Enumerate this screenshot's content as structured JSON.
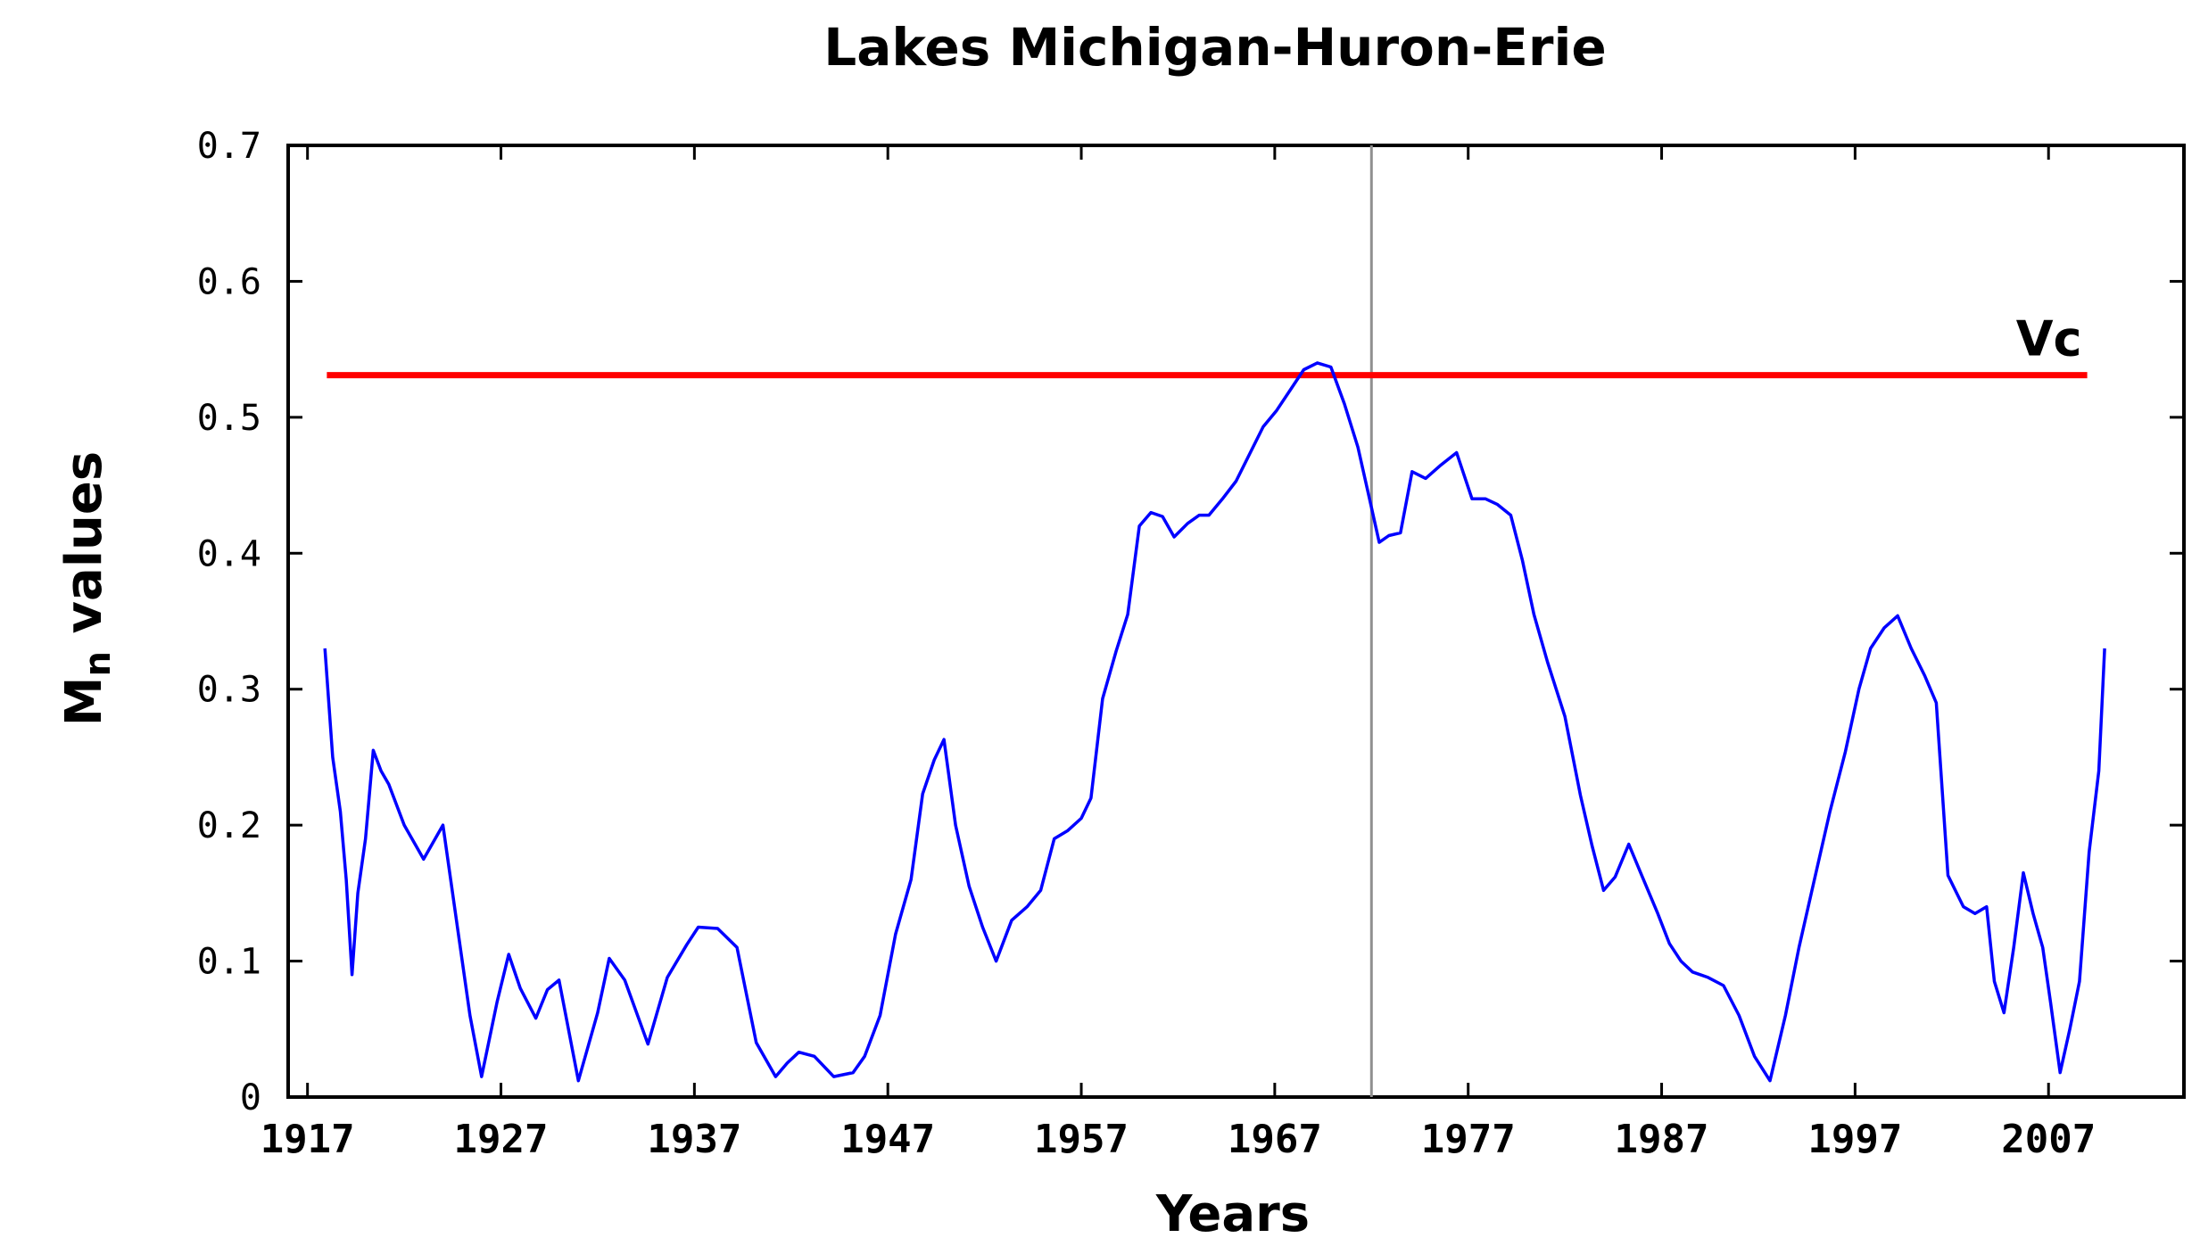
{
  "chart_data": {
    "type": "line",
    "title": "Lakes Michigan-Huron-Erie",
    "xlabel": "Years",
    "ylabel_main": "M",
    "ylabel_sub": "n",
    "ylabel_rest": " values",
    "xlim": [
      1916,
      2014
    ],
    "ylim": [
      0,
      0.7
    ],
    "x_ticks": [
      1917,
      1927,
      1937,
      1947,
      1957,
      1967,
      1977,
      1987,
      1997,
      2007
    ],
    "y_ticks": [
      0,
      0.1,
      0.2,
      0.3,
      0.4,
      0.5,
      0.6,
      0.7
    ],
    "y_tick_labels": [
      "0",
      "0.1",
      "0.2",
      "0.3",
      "0.4",
      "0.5",
      "0.6",
      "0.7"
    ],
    "grid": false,
    "reference_line": {
      "label": "Vc",
      "y": 0.531,
      "x_start": 1918,
      "x_end": 2009,
      "color": "#ff0000"
    },
    "vertical_marker": {
      "x": 1972,
      "color": "#909090"
    },
    "series": [
      {
        "color": "#0000ff",
        "x": [
          1917.9,
          1918.3,
          1918.7,
          1919.0,
          1919.3,
          1919.6,
          1920.0,
          1920.4,
          1920.8,
          1921.2,
          1922.0,
          1923.0,
          1924.0,
          1924.8,
          1925.4,
          1926.0,
          1926.8,
          1927.4,
          1928.0,
          1928.8,
          1929.4,
          1930.0,
          1931.0,
          1932.0,
          1932.6,
          1933.4,
          1934.6,
          1935.6,
          1936.6,
          1937.2,
          1938.2,
          1939.2,
          1940.2,
          1941.2,
          1941.8,
          1942.4,
          1943.2,
          1944.2,
          1945.2,
          1945.8,
          1946.6,
          1947.4,
          1948.2,
          1948.8,
          1949.4,
          1949.9,
          1950.5,
          1951.2,
          1951.9,
          1952.6,
          1953.4,
          1954.2,
          1954.9,
          1955.6,
          1956.3,
          1957.0,
          1957.5,
          1958.1,
          1958.8,
          1959.4,
          1960.0,
          1960.6,
          1961.2,
          1961.8,
          1962.5,
          1963.1,
          1963.6,
          1964.3,
          1965.0,
          1965.7,
          1966.4,
          1967.1,
          1967.8,
          1968.5,
          1969.2,
          1969.9,
          1970.6,
          1971.3,
          1971.9,
          1972.4,
          1972.9,
          1973.5,
          1974.1,
          1974.8,
          1975.6,
          1976.4,
          1977.2,
          1977.9,
          1978.5,
          1979.2,
          1979.8,
          1980.4,
          1981.1,
          1982.0,
          1982.8,
          1983.4,
          1984.0,
          1984.6,
          1985.3,
          1986.0,
          1986.8,
          1987.4,
          1988.0,
          1988.6,
          1989.4,
          1990.2,
          1991.0,
          1991.8,
          1992.6,
          1993.4,
          1994.1,
          1994.9,
          1995.7,
          1996.5,
          1997.2,
          1997.8,
          1998.5,
          1999.2,
          1999.9,
          2000.6,
          2001.2,
          2001.8,
          2002.6,
          2003.2,
          2003.8,
          2004.2,
          2004.7,
          2005.2,
          2005.7,
          2006.2,
          2006.7,
          2007.1,
          2007.6,
          2008.1,
          2008.6,
          2009.1,
          2009.6,
          2009.9
        ],
        "y": [
          0.33,
          0.25,
          0.21,
          0.16,
          0.09,
          0.15,
          0.19,
          0.255,
          0.24,
          0.23,
          0.2,
          0.175,
          0.2,
          0.12,
          0.06,
          0.015,
          0.07,
          0.105,
          0.08,
          0.058,
          0.079,
          0.086,
          0.012,
          0.062,
          0.102,
          0.086,
          0.039,
          0.088,
          0.112,
          0.125,
          0.124,
          0.11,
          0.04,
          0.015,
          0.025,
          0.033,
          0.03,
          0.015,
          0.018,
          0.03,
          0.06,
          0.12,
          0.16,
          0.223,
          0.248,
          0.263,
          0.2,
          0.155,
          0.125,
          0.1,
          0.13,
          0.14,
          0.152,
          0.19,
          0.196,
          0.205,
          0.22,
          0.293,
          0.328,
          0.355,
          0.42,
          0.43,
          0.427,
          0.412,
          0.422,
          0.428,
          0.428,
          0.44,
          0.453,
          0.473,
          0.493,
          0.505,
          0.52,
          0.535,
          0.54,
          0.537,
          0.51,
          0.478,
          0.44,
          0.408,
          0.413,
          0.415,
          0.46,
          0.455,
          0.465,
          0.474,
          0.44,
          0.44,
          0.436,
          0.428,
          0.395,
          0.355,
          0.32,
          0.28,
          0.222,
          0.185,
          0.152,
          0.162,
          0.186,
          0.162,
          0.135,
          0.113,
          0.1,
          0.092,
          0.088,
          0.082,
          0.06,
          0.03,
          0.012,
          0.06,
          0.11,
          0.16,
          0.21,
          0.254,
          0.3,
          0.33,
          0.345,
          0.354,
          0.33,
          0.31,
          0.29,
          0.163,
          0.14,
          0.135,
          0.14,
          0.085,
          0.062,
          0.11,
          0.165,
          0.135,
          0.11,
          0.07,
          0.018,
          0.05,
          0.085,
          0.18,
          0.24,
          0.33
        ]
      }
    ]
  }
}
